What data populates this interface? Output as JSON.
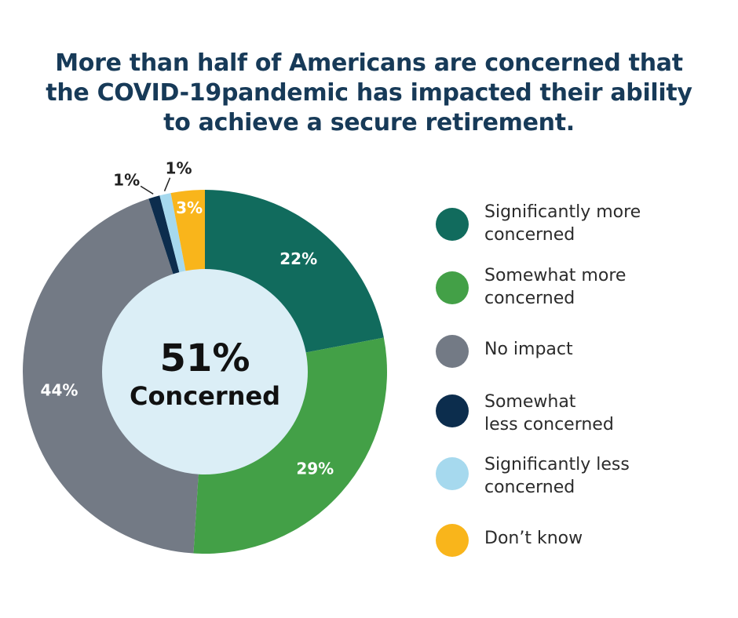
{
  "title_lines": [
    "More than half of Americans are concerned that",
    "the COVID-19pandemic has impacted their ability",
    "to achieve a secure retirement."
  ],
  "center": {
    "value": "51%",
    "label": "Concerned"
  },
  "chart_data": {
    "type": "pie",
    "variant": "donut",
    "title": "More than half of Americans are concerned that the COVID-19pandemic has impacted their ability to achieve a secure retirement.",
    "categories": [
      "Significantly more concerned",
      "Somewhat more concerned",
      "No impact",
      "Somewhat less concerned",
      "Significantly less concerned",
      "Don’t know"
    ],
    "values": [
      22,
      29,
      44,
      1,
      1,
      3
    ],
    "labels": [
      "22%",
      "29%",
      "44%",
      "1%",
      "1%",
      "3%"
    ],
    "colors": [
      "#116b5d",
      "#43a047",
      "#737a85",
      "#0c2d4d",
      "#a6d9ee",
      "#f9b51b"
    ],
    "legend_position": "right"
  },
  "legend": [
    {
      "label": "Significantly more\nconcerned",
      "color": "#116b5d"
    },
    {
      "label": "Somewhat more\nconcerned",
      "color": "#43a047"
    },
    {
      "label": "No impact",
      "color": "#737a85"
    },
    {
      "label": "Somewhat\nless concerned",
      "color": "#0c2d4d"
    },
    {
      "label": "Significantly less\nconcerned",
      "color": "#a6d9ee"
    },
    {
      "label": "Don’t know",
      "color": "#f9b51b"
    }
  ],
  "colors": {
    "title": "#173a58",
    "center_fill": "#dbeef6"
  }
}
